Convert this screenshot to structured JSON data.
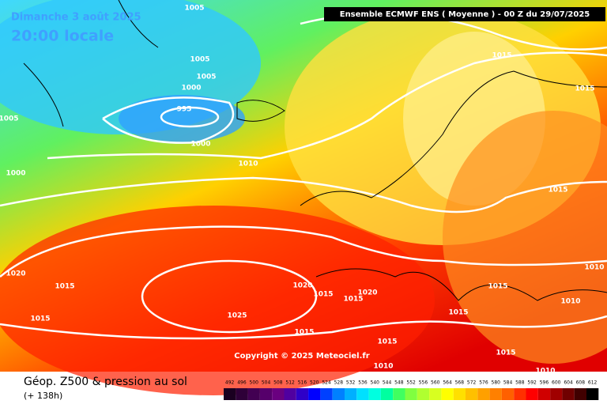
{
  "header": {
    "date": "Dimanche 3 août 2025",
    "time": "20:00 locale",
    "run": "Ensemble ECMWF ENS  ( Moyenne )  - 00 Z du 29/07/2025"
  },
  "copyright": "Copyright © 2025 Meteociel.fr",
  "footer": {
    "title": "Géop. Z500 & pression au sol",
    "lead": "(+ 138h)"
  },
  "isobar_labels": [
    1005,
    1005,
    1005,
    1000,
    995,
    1005,
    1000,
    1010,
    1000,
    1015,
    1015,
    1015,
    1020,
    1015,
    1020,
    1015,
    1015,
    1020,
    1025,
    1015,
    1015,
    1015,
    1015,
    1015,
    1010,
    1010,
    1015,
    1010,
    1010
  ],
  "legend": {
    "values": [
      492,
      496,
      500,
      504,
      508,
      512,
      516,
      520,
      524,
      528,
      532,
      536,
      540,
      544,
      548,
      552,
      556,
      560,
      564,
      568,
      572,
      576,
      580,
      584,
      588,
      592,
      596,
      600,
      604,
      608,
      612
    ],
    "colors": [
      "#1a0020",
      "#2e0038",
      "#420052",
      "#56006b",
      "#6a0080",
      "#5000a0",
      "#2e00c8",
      "#0000ff",
      "#0040ff",
      "#0080ff",
      "#00b0ff",
      "#00e0ff",
      "#00ffe0",
      "#00ffa0",
      "#40ff60",
      "#80ff40",
      "#b0ff30",
      "#d8ff20",
      "#ffff00",
      "#ffe000",
      "#ffc000",
      "#ffa000",
      "#ff8000",
      "#ff6000",
      "#ff3000",
      "#ff0000",
      "#d00000",
      "#a00000",
      "#700000",
      "#400000",
      "#000000"
    ]
  }
}
